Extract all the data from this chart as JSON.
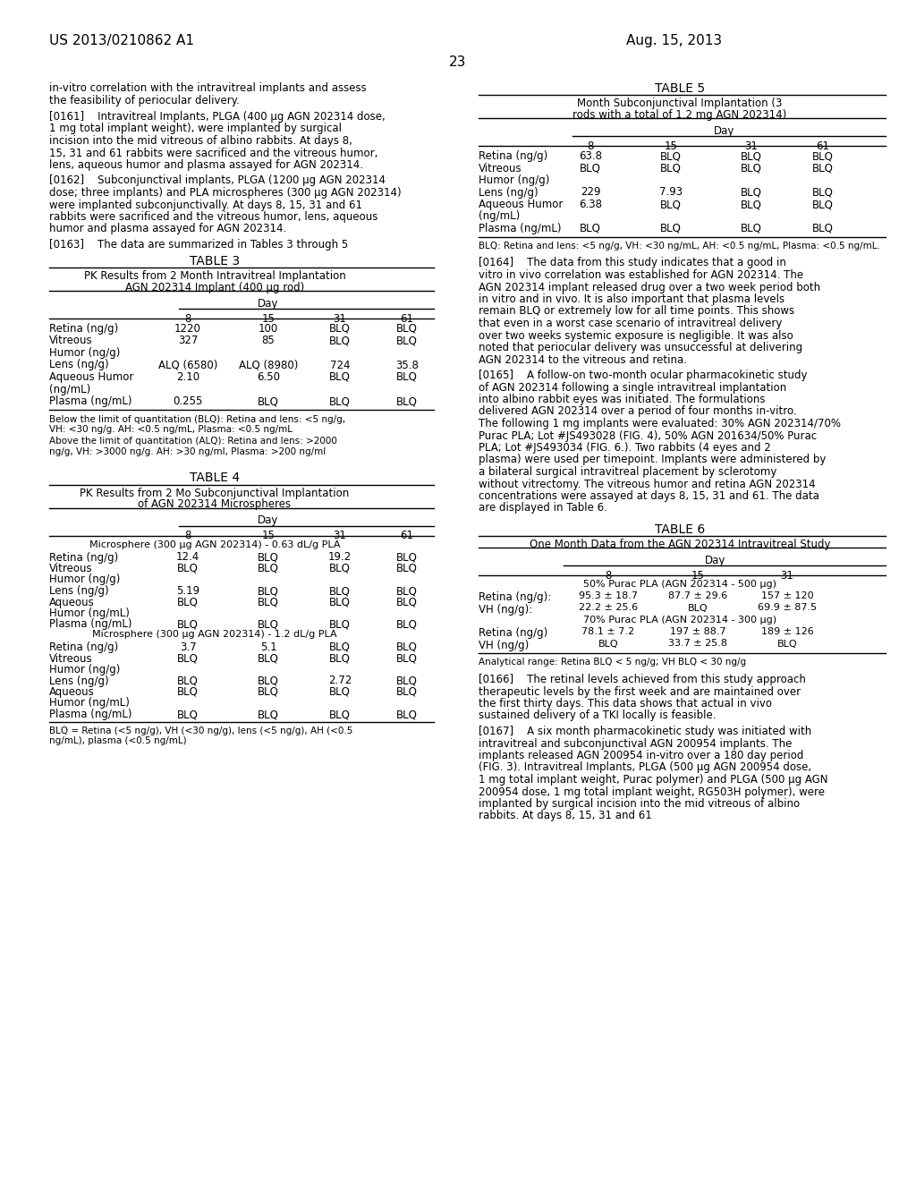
{
  "background_color": "#ffffff",
  "header_left": "US 2013/0210862 A1",
  "header_right": "Aug. 15, 2013",
  "page_number": "23",
  "left_column": {
    "intro_text": [
      "in-vitro correlation with the intravitreal implants and assess",
      "the feasibility of periocular delivery."
    ],
    "para_0161": "[0161]    Intravitreal Implants, PLGA (400 μg AGN 202314 dose, 1 mg total implant weight), were implanted by surgical incision into the mid vitreous of albino rabbits. At days 8, 15, 31 and 61 rabbits were sacrificed and the vitreous humor, lens, aqueous humor and plasma assayed for AGN 202314.",
    "para_0162": "[0162]    Subconjunctival implants, PLGA (1200 μg AGN 202314 dose; three implants) and PLA microspheres (300 μg AGN 202314) were implanted subconjunctivally. At days 8, 15, 31 and 61 rabbits were sacrificed and the vitreous humor, lens, aqueous humor and plasma assayed for AGN 202314.",
    "para_0163": "[0163]    The data are summarized in Tables 3 through 5",
    "table3_title": "TABLE 3",
    "table3_subtitle1": "PK Results from 2 Month Intravitreal Implantation",
    "table3_subtitle2": "AGN 202314 Implant (400 μg rod)",
    "table3_day_label": "Day",
    "table3_col_headers": [
      "8",
      "15",
      "31",
      "61"
    ],
    "table3_rows": [
      [
        "Retina (ng/g)",
        "1220",
        "100",
        "BLQ",
        "BLQ"
      ],
      [
        "Vitreous",
        "327",
        "85",
        "BLQ",
        "BLQ"
      ],
      [
        "Humor (ng/g)",
        "",
        "",
        "",
        ""
      ],
      [
        "Lens (ng/g)",
        "ALQ (6580)",
        "ALQ (8980)",
        "724",
        "35.8"
      ],
      [
        "Aqueous Humor",
        "2.10",
        "6.50",
        "BLQ",
        "BLQ"
      ],
      [
        "(ng/mL)",
        "",
        "",
        "",
        ""
      ],
      [
        "Plasma (ng/mL)",
        "0.255",
        "BLQ",
        "BLQ",
        "BLQ"
      ]
    ],
    "table3_footnote1": "Below the limit of quantitation (BLQ): Retina and lens: <5 ng/g, VH: <30 ng/g. AH: <0.5 ng/mL, Plasma: <0.5 ng/mL",
    "table3_footnote2": "Above the limit of quantitation (ALQ): Retina and lens: >2000 ng/g, VH: >3000 ng/g. AH: >30 ng/ml, Plasma: >200 ng/ml",
    "table4_title": "TABLE 4",
    "table4_subtitle1": "PK Results from 2 Mo Subconjunctival Implantation",
    "table4_subtitle2": "of AGN 202314 Microspheres",
    "table4_day_label": "Day",
    "table4_col_headers": [
      "8",
      "15",
      "31",
      "61"
    ],
    "table4_section1": "Microsphere (300 μg AGN 202314) - 0.63 dL/g PLA",
    "table4_rows_s1": [
      [
        "Retina (ng/g)",
        "12.4",
        "BLQ",
        "19.2",
        "BLQ"
      ],
      [
        "Vitreous",
        "BLQ",
        "BLQ",
        "BLQ",
        "BLQ"
      ],
      [
        "Humor (ng/g)",
        "",
        "",
        "",
        ""
      ],
      [
        "Lens (ng/g)",
        "5.19",
        "BLQ",
        "BLQ",
        "BLQ"
      ],
      [
        "Aqueous",
        "BLQ",
        "BLQ",
        "BLQ",
        "BLQ"
      ],
      [
        "Humor (ng/mL)",
        "",
        "",
        "",
        ""
      ],
      [
        "Plasma (ng/mL)",
        "BLQ",
        "BLQ",
        "BLQ",
        "BLQ"
      ]
    ],
    "table4_section2": "Microsphere (300 μg AGN 202314) - 1.2 dL/g PLA",
    "table4_rows_s2": [
      [
        "Retina (ng/g)",
        "3.7",
        "5.1",
        "BLQ",
        "BLQ"
      ],
      [
        "Vitreous",
        "BLQ",
        "BLQ",
        "BLQ",
        "BLQ"
      ],
      [
        "Humor (ng/g)",
        "",
        "",
        "",
        ""
      ],
      [
        "Lens (ng/g)",
        "BLQ",
        "BLQ",
        "2.72",
        "BLQ"
      ],
      [
        "Aqueous",
        "BLQ",
        "BLQ",
        "BLQ",
        "BLQ"
      ],
      [
        "Humor (ng/mL)",
        "",
        "",
        "",
        ""
      ],
      [
        "Plasma (ng/mL)",
        "BLQ",
        "BLQ",
        "BLQ",
        "BLQ"
      ]
    ],
    "table4_footnote": "BLQ = Retina (<5 ng/g), VH (<30 ng/g), lens (<5 ng/g), AH (<0.5 ng/mL), plasma (<0.5 ng/mL)"
  },
  "right_column": {
    "table5_title": "TABLE 5",
    "table5_subtitle1": "Month Subconjunctival Implantation (3",
    "table5_subtitle2": "rods with a total of 1.2 mg AGN 202314)",
    "table5_day_label": "Day",
    "table5_col_headers": [
      "8",
      "15",
      "31",
      "61"
    ],
    "table5_rows": [
      [
        "Retina (ng/g)",
        "63.8",
        "BLQ",
        "BLQ",
        "BLQ"
      ],
      [
        "Vitreous",
        "BLQ",
        "BLQ",
        "BLQ",
        "BLQ"
      ],
      [
        "Humor (ng/g)",
        "",
        "",
        "",
        ""
      ],
      [
        "Lens (ng/g)",
        "229",
        "7.93",
        "BLQ",
        "BLQ"
      ],
      [
        "Aqueous Humor",
        "6.38",
        "BLQ",
        "BLQ",
        "BLQ"
      ],
      [
        "(ng/mL)",
        "",
        "",
        "",
        ""
      ],
      [
        "Plasma (ng/mL)",
        "BLQ",
        "BLQ",
        "BLQ",
        "BLQ"
      ]
    ],
    "table5_footnote": "BLQ: Retina and lens: <5 ng/g, VH: <30 ng/mL, AH: <0.5 ng/mL, Plasma: <0.5 ng/mL.",
    "para_0164": "[0164]    The data from this study indicates that a good in vitro in vivo correlation was established for AGN 202314. The AGN 202314 implant released drug over a two week period both in vitro and in vivo. It is also important that plasma levels remain BLQ or extremely low for all time points. This shows that even in a worst case scenario of intravitreal delivery over two weeks systemic exposure is negligible. It was also noted that periocular delivery was unsuccessful at delivering AGN 202314 to the vitreous and retina.",
    "para_0165": "[0165]    A follow-on two-month ocular pharmacokinetic study of AGN 202314 following a single intravitreal implantation into albino rabbit eyes was initiated. The formulations delivered AGN 202314 over a period of four months in-vitro. The following 1 mg implants were evaluated: 30% AGN 202314/70% Purac PLA; Lot #JS493028 (FIG. 4), 50% AGN 201634/50% Purac PLA; Lot #JS493034 (FIG. 6.). Two rabbits (4 eyes and 2 plasma) were used per timepoint. Implants were administered by a bilateral surgical intravitreal placement by sclerotomy without vitrectomy. The vitreous humor and retina AGN 202314 concentrations were assayed at days 8, 15, 31 and 61. The data are displayed in Table 6.",
    "table6_title": "TABLE 6",
    "table6_subtitle": "One Month Data from the AGN 202314 Intravitreal Study",
    "table6_day_label": "Day",
    "table6_col_headers": [
      "8",
      "15",
      "31"
    ],
    "table6_section1": "50% Purac PLA (AGN 202314 - 500 μg)",
    "table6_rows_s1": [
      [
        "Retina (ng/g):",
        "95.3 ± 18.7",
        "87.7 ± 29.6",
        "157 ± 120"
      ],
      [
        "VH (ng/g):",
        "22.2 ± 25.6",
        "BLQ",
        "69.9 ± 87.5"
      ]
    ],
    "table6_section2": "70% Purac PLA (AGN 202314 - 300 μg)",
    "table6_rows_s2": [
      [
        "Retina (ng/g)",
        "78.1 ± 7.2",
        "197 ± 88.7",
        "189 ± 126"
      ],
      [
        "VH (ng/g)",
        "BLQ",
        "33.7 ± 25.8",
        "BLQ"
      ]
    ],
    "table6_footnote": "Analytical range: Retina BLQ < 5 ng/g; VH BLQ < 30 ng/g",
    "para_0166": "[0166]    The retinal levels achieved from this study approach therapeutic levels by the first week and are maintained over the first thirty days. This data shows that actual in vivo sustained delivery of a TKI locally is feasible.",
    "para_0167": "[0167]    A six month pharmacokinetic study was initiated with intravitreal and subconjunctival AGN 200954 implants. The implants released AGN 200954 in-vitro over a 180 day period (FIG. 3). Intravitreal Implants, PLGA (500 μg AGN 200954 dose, 1 mg total implant weight, Purac polymer) and PLGA (500 μg AGN 200954 dose, 1 mg total implant weight, RG503H polymer), were implanted by surgical incision into the mid vitreous of albino rabbits. At days 8, 15, 31 and 61"
  }
}
